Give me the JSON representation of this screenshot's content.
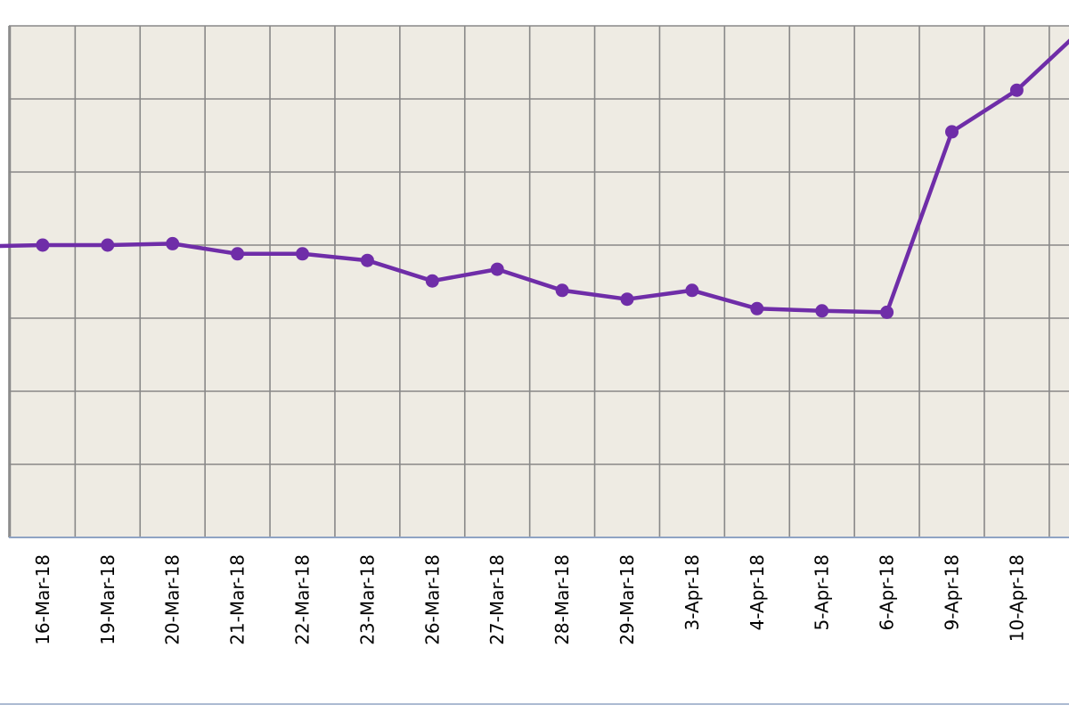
{
  "chart_data": {
    "type": "line",
    "title": "",
    "xlabel": "",
    "ylabel": "",
    "categories": [
      "",
      "16-Mar-18",
      "19-Mar-18",
      "20-Mar-18",
      "21-Mar-18",
      "22-Mar-18",
      "23-Mar-18",
      "26-Mar-18",
      "27-Mar-18",
      "28-Mar-18",
      "29-Mar-18",
      "3-Apr-18",
      "4-Apr-18",
      "5-Apr-18",
      "6-Apr-18",
      "9-Apr-18",
      "10-Apr-18",
      ""
    ],
    "series": [
      {
        "values": [
          3.02,
          3.0,
          3.0,
          2.98,
          3.12,
          3.12,
          3.21,
          3.49,
          3.33,
          3.62,
          3.74,
          3.62,
          3.87,
          3.9,
          3.92,
          1.45,
          0.88,
          0.05
        ]
      }
    ],
    "ylim": [
      0,
      7
    ],
    "grid": true,
    "legend": "none",
    "colors": {
      "line": "#6f2da8",
      "plot_background": "#eeebe3",
      "grid": "#888888",
      "axis": "#8fa3c4"
    }
  }
}
